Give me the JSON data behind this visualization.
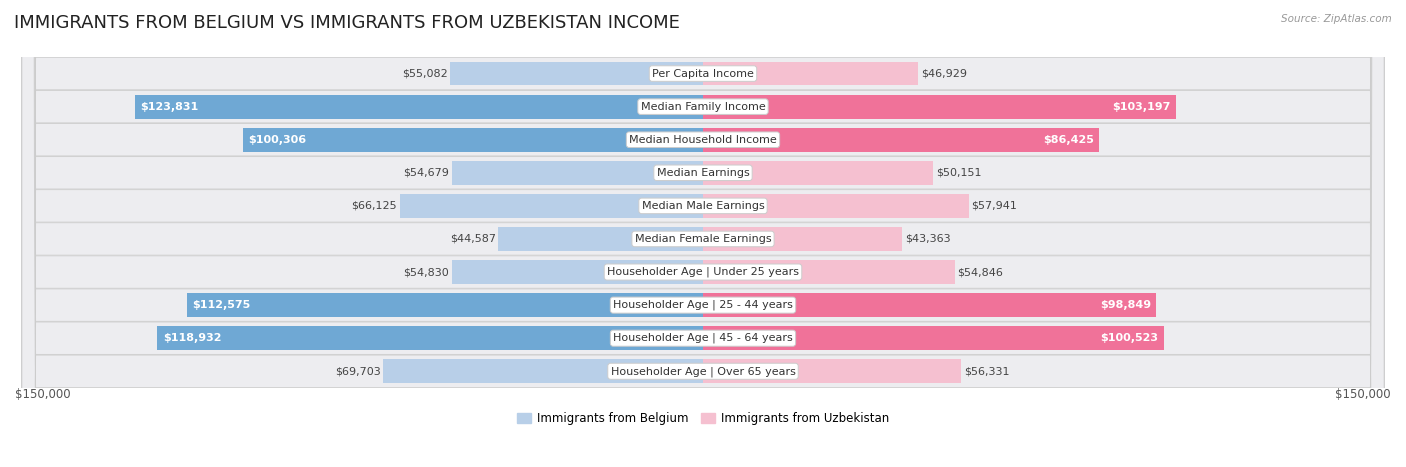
{
  "title": "IMMIGRANTS FROM BELGIUM VS IMMIGRANTS FROM UZBEKISTAN INCOME",
  "source": "Source: ZipAtlas.com",
  "categories": [
    "Per Capita Income",
    "Median Family Income",
    "Median Household Income",
    "Median Earnings",
    "Median Male Earnings",
    "Median Female Earnings",
    "Householder Age | Under 25 years",
    "Householder Age | 25 - 44 years",
    "Householder Age | 45 - 64 years",
    "Householder Age | Over 65 years"
  ],
  "belgium_values": [
    55082,
    123831,
    100306,
    54679,
    66125,
    44587,
    54830,
    112575,
    118932,
    69703
  ],
  "uzbekistan_values": [
    46929,
    103197,
    86425,
    50151,
    57941,
    43363,
    54846,
    98849,
    100523,
    56331
  ],
  "belgium_labels": [
    "$55,082",
    "$123,831",
    "$100,306",
    "$54,679",
    "$66,125",
    "$44,587",
    "$54,830",
    "$112,575",
    "$118,932",
    "$69,703"
  ],
  "uzbekistan_labels": [
    "$46,929",
    "$103,197",
    "$86,425",
    "$50,151",
    "$57,941",
    "$43,363",
    "$54,846",
    "$98,849",
    "$100,523",
    "$56,331"
  ],
  "belgium_color_low": "#b8cfe8",
  "belgium_color_high": "#6fa8d4",
  "uzbekistan_color_low": "#f5c0d0",
  "uzbekistan_color_high": "#f07299",
  "threshold": 80000,
  "max_value": 150000,
  "xlabel_left": "$150,000",
  "xlabel_right": "$150,000",
  "legend_belgium": "Immigrants from Belgium",
  "legend_uzbekistan": "Immigrants from Uzbekistan",
  "background_color": "#ffffff",
  "row_even_color": "#f2f2f4",
  "row_odd_color": "#e8e8ec",
  "row_edge_color": "#d0d0d8",
  "title_fontsize": 13,
  "label_fontsize": 8.0,
  "category_fontsize": 8.0
}
